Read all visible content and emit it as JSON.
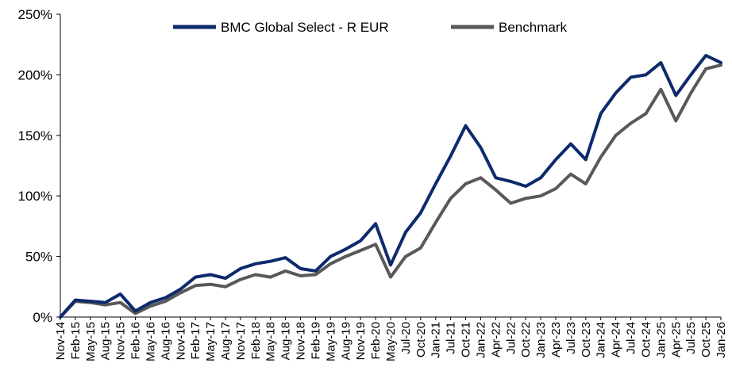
{
  "chart_data": {
    "type": "line",
    "title": "",
    "xlabel": "",
    "ylabel": "",
    "ylim": [
      0,
      250
    ],
    "yticks": [
      0,
      50,
      100,
      150,
      200,
      250
    ],
    "ytick_labels": [
      "0%",
      "50%",
      "100%",
      "150%",
      "200%",
      "250%"
    ],
    "xtick_labels": [
      "Nov-14",
      "Feb-15",
      "May-15",
      "Aug-15",
      "Nov-15",
      "Feb-16",
      "May-16",
      "Aug-16",
      "Nov-16",
      "Feb-17",
      "May-17",
      "Aug-17",
      "Nov-17",
      "Feb-18",
      "May-18",
      "Aug-18",
      "Nov-18",
      "Feb-19",
      "May-19",
      "Aug-19",
      "Nov-19",
      "Feb-20",
      "May-20",
      "Jul-20",
      "Oct-20",
      "Jan-21",
      "Jul-21",
      "Oct-21",
      "Jan-22",
      "Apr-22",
      "Jul-22",
      "Oct-22",
      "Jan-23",
      "Apr-23",
      "Jul-23",
      "Oct-23",
      "Jan-24",
      "Apr-24",
      "Jul-24",
      "Oct-24",
      "Jan-25",
      "Apr-25",
      "Jul-25",
      "Oct-25",
      "Jan-26"
    ],
    "legend_position": "top-center",
    "grid": false,
    "series": [
      {
        "name": "BMC Global Select - R EUR",
        "color": "#0d2a6b",
        "x": [
          0,
          1,
          2,
          3,
          4,
          5,
          6,
          7,
          8,
          9,
          10,
          11,
          12,
          13,
          14,
          15,
          16,
          17,
          18,
          19,
          20,
          21,
          22,
          23,
          24,
          25,
          26,
          27,
          28,
          29,
          30,
          31,
          32,
          33,
          34,
          35,
          36,
          37,
          38,
          39,
          40,
          41,
          42,
          43,
          44
        ],
        "values": [
          0,
          14,
          13,
          12,
          19,
          5,
          12,
          16,
          23,
          33,
          35,
          32,
          40,
          44,
          46,
          49,
          40,
          38,
          50,
          56,
          63,
          77,
          43,
          70,
          86,
          110,
          133,
          158,
          140,
          115,
          112,
          108,
          115,
          130,
          143,
          130,
          168,
          185,
          198,
          200,
          210,
          183,
          200,
          216,
          210
        ]
      },
      {
        "name": "Benchmark",
        "color": "#595959",
        "x": [
          0,
          1,
          2,
          3,
          4,
          5,
          6,
          7,
          8,
          9,
          10,
          11,
          12,
          13,
          14,
          15,
          16,
          17,
          18,
          19,
          20,
          21,
          22,
          23,
          24,
          25,
          26,
          27,
          28,
          29,
          30,
          31,
          32,
          33,
          34,
          35,
          36,
          37,
          38,
          39,
          40,
          41,
          42,
          43,
          44
        ],
        "values": [
          0,
          13,
          12,
          10,
          12,
          3,
          9,
          13,
          20,
          26,
          27,
          25,
          31,
          35,
          33,
          38,
          34,
          35,
          44,
          50,
          55,
          60,
          33,
          50,
          57,
          78,
          98,
          110,
          115,
          105,
          94,
          98,
          100,
          106,
          118,
          110,
          132,
          150,
          160,
          168,
          188,
          162,
          185,
          205,
          208
        ]
      }
    ]
  }
}
